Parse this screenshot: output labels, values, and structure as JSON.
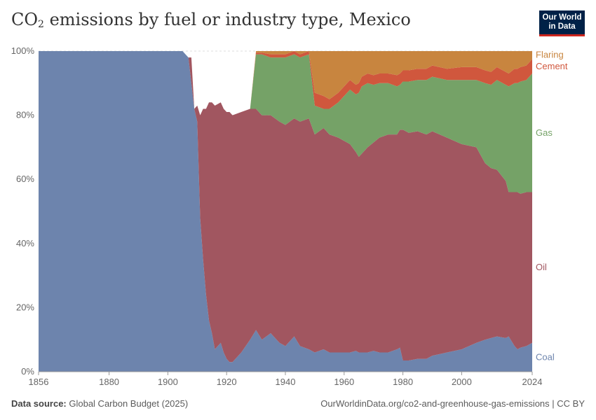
{
  "header": {
    "title_main": "CO",
    "title_sub": "2",
    "title_rest": " emissions by fuel or industry type, Mexico",
    "logo_line1": "Our World",
    "logo_line2": "in Data"
  },
  "footer": {
    "source_label": "Data source:",
    "source_text": " Global Carbon Budget (2025)",
    "url_text": "OurWorldinData.org/co2-and-greenhouse-gas-emissions | CC BY"
  },
  "chart_data": {
    "type": "area",
    "stacked": true,
    "normalized_percent": true,
    "title": "CO₂ emissions by fuel or industry type, Mexico",
    "xlabel": "",
    "ylabel": "",
    "xlim": [
      1856,
      2024
    ],
    "ylim": [
      0,
      100
    ],
    "x_ticks": [
      1856,
      1880,
      1900,
      1920,
      1940,
      1960,
      1980,
      2000,
      2024
    ],
    "y_ticks": [
      0,
      20,
      40,
      60,
      80,
      100
    ],
    "y_tick_labels": [
      "0%",
      "20%",
      "40%",
      "60%",
      "80%",
      "100%"
    ],
    "grid": "horizontal",
    "x": [
      1856,
      1900,
      1905,
      1907,
      1908,
      1909,
      1910,
      1911,
      1912,
      1913,
      1914,
      1915,
      1916,
      1918,
      1919,
      1920,
      1921,
      1922,
      1925,
      1928,
      1930,
      1932,
      1935,
      1938,
      1940,
      1943,
      1945,
      1948,
      1950,
      1953,
      1955,
      1958,
      1960,
      1962,
      1964,
      1965,
      1966,
      1968,
      1970,
      1972,
      1975,
      1978,
      1979,
      1980,
      1982,
      1985,
      1988,
      1990,
      1995,
      2000,
      2005,
      2008,
      2010,
      2012,
      2015,
      2016,
      2018,
      2019,
      2020,
      2022,
      2024
    ],
    "series": [
      {
        "name": "Coal",
        "color": "#6d84ad",
        "values": [
          100,
          100,
          100,
          98,
          90,
          82,
          78,
          48,
          35,
          24,
          16,
          12,
          7,
          9,
          6,
          4,
          3,
          3,
          6,
          10,
          13,
          10,
          12,
          9,
          8,
          11,
          8,
          7,
          6,
          7,
          6,
          6,
          6,
          6,
          6.5,
          6,
          6,
          6,
          6.5,
          6,
          6,
          7,
          7.5,
          3.5,
          3.5,
          4,
          4,
          5,
          6,
          7,
          9,
          10,
          10.5,
          11,
          10.5,
          11,
          8,
          7,
          7.5,
          8,
          9
        ]
      },
      {
        "name": "Oil",
        "color": "#a15660",
        "values": [
          0,
          0,
          0,
          0,
          8,
          0,
          5,
          32,
          47,
          58,
          68,
          72,
          76,
          75,
          76,
          77,
          78,
          77,
          75,
          72,
          69,
          70,
          68,
          69,
          69,
          68,
          70,
          72,
          68,
          69,
          68,
          67,
          66,
          65,
          62,
          61,
          62,
          64,
          65,
          67,
          68,
          67,
          68,
          72,
          71,
          71,
          70,
          70,
          67,
          64,
          61,
          55,
          53,
          52,
          49,
          45,
          48,
          49,
          48,
          48,
          47
        ]
      },
      {
        "name": "Gas",
        "color": "#75a267",
        "values": [
          0,
          0,
          0,
          0,
          0,
          0,
          0,
          0,
          0,
          0,
          0,
          0,
          0,
          0,
          0,
          0,
          0,
          0,
          0,
          0,
          17,
          19,
          18,
          20,
          21,
          20,
          20,
          20,
          9,
          6,
          8,
          11,
          14,
          17,
          18,
          20,
          21,
          20,
          18,
          17,
          16,
          15,
          14,
          15,
          16,
          16,
          17,
          17,
          18,
          20,
          21,
          25,
          26,
          28,
          30,
          33,
          34,
          34,
          35,
          35,
          37
        ]
      },
      {
        "name": "Cement",
        "color": "#d0573d",
        "values": [
          0,
          0,
          0,
          0,
          0,
          0,
          0,
          0,
          0,
          0,
          0,
          0,
          0,
          0,
          0,
          0,
          0,
          0,
          0,
          0,
          0.5,
          0.5,
          1,
          1,
          1,
          1,
          1,
          1,
          4,
          4,
          3,
          3,
          3,
          3,
          3,
          3,
          3,
          3,
          3,
          3,
          3,
          3.5,
          3.5,
          3.5,
          3.5,
          3.5,
          3.5,
          3.5,
          3.5,
          4,
          4,
          4,
          4,
          4,
          4,
          4,
          4.5,
          4.5,
          4.5,
          4.5,
          4.5
        ]
      },
      {
        "name": "Flaring",
        "color": "#c8853f",
        "values": [
          0,
          0,
          0,
          0,
          0,
          0,
          0,
          0,
          0,
          0,
          0,
          0,
          0,
          0,
          0,
          0,
          0,
          0,
          0,
          0,
          0.5,
          0.5,
          1,
          1,
          1,
          0,
          1,
          0,
          13,
          14,
          15,
          13,
          11,
          9,
          10.5,
          10,
          8,
          7,
          7.5,
          7,
          7,
          7.5,
          7,
          6,
          6,
          5.5,
          5.5,
          4.5,
          5.5,
          5,
          5,
          6,
          6.5,
          5,
          6.5,
          7,
          5.5,
          5.5,
          5,
          4.5,
          2.5
        ]
      }
    ],
    "legend": "labels at right end of each area"
  }
}
